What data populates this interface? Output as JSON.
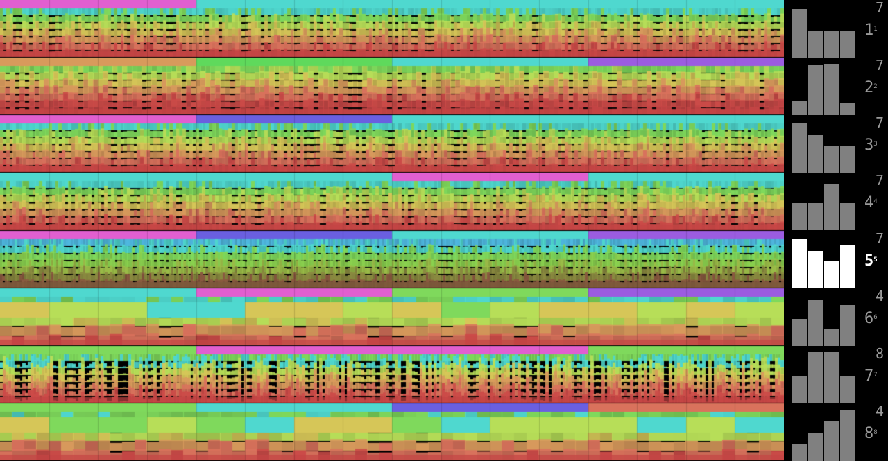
{
  "tracks": [
    {
      "index": "1",
      "sup": "1",
      "count": "7",
      "bars": [
        0.97,
        0.54,
        0.54,
        0.54
      ],
      "palette": [
        "#4fd8cf",
        "#7fd95c",
        "#b7de58",
        "#d6c658",
        "#d89a5c",
        "#d9725c",
        "#cc4b48"
      ],
      "head": [
        "#e15fd0",
        "#4fd8cf",
        "#4fd8cf",
        "#4fd8cf"
      ],
      "style": "fine"
    },
    {
      "index": "2",
      "sup": "2",
      "count": "7",
      "bars": [
        0.28,
        1.0,
        1.03,
        0.24
      ],
      "palette": [
        "#7fd95c",
        "#b7de58",
        "#d6c658",
        "#d89a5c",
        "#d9725c",
        "#cc4b48",
        "#c44545"
      ],
      "head": [
        "#d89a5c",
        "#5fd95c",
        "#4fd8cf",
        "#9b5ce0"
      ],
      "style": "coarse"
    },
    {
      "index": "3",
      "sup": "3",
      "count": "7",
      "bars": [
        0.98,
        0.75,
        0.54,
        0.54
      ],
      "palette": [
        "#4fd8cf",
        "#7fd95c",
        "#b7de58",
        "#d6c658",
        "#d89a5c",
        "#d9725c",
        "#cc4b48"
      ],
      "head": [
        "#e15fd0",
        "#6a5fe0",
        "#4fd8cf",
        "#4fd8cf"
      ],
      "style": "fine"
    },
    {
      "index": "4",
      "sup": "4",
      "count": "7",
      "bars": [
        0.54,
        0.54,
        0.92,
        0.54
      ],
      "palette": [
        "#4fd8cf",
        "#7fd95c",
        "#b7de58",
        "#d6c658",
        "#d89a5c",
        "#d9725c",
        "#cc4b48"
      ],
      "head": [
        "#4fd8cf",
        "#4fd8cf",
        "#e15fd0",
        "#4fd8cf"
      ],
      "style": "fine"
    },
    {
      "index": "5",
      "sup": "5",
      "count": "7",
      "bars": [
        0.98,
        0.75,
        0.54,
        0.88
      ],
      "palette": [
        "#4fb8e0",
        "#4fd8cf",
        "#7fd95c",
        "#8bd24f",
        "#9bbc48",
        "#8a8a40",
        "#8a5a40"
      ],
      "head": [
        "#e15fd0",
        "#6a5fe0",
        "#4fd8cf",
        "#9b5ce0"
      ],
      "style": "dense"
    },
    {
      "index": "6",
      "sup": "6",
      "count": "4",
      "bars": [
        0.54,
        0.92,
        0.33,
        0.82
      ],
      "palette": [
        "#4fd8cf",
        "#7fd95c",
        "#b7de58",
        "#d6c658",
        "#d89a5c",
        "#d9725c",
        "#cc4b48"
      ],
      "head": [
        "#4fd8cf",
        "#e15fd0",
        "#7fd95c",
        "#9b5ce0"
      ],
      "style": "blocky"
    },
    {
      "index": "7",
      "sup": "7",
      "count": "8",
      "bars": [
        0.54,
        1.03,
        1.03,
        0.54
      ],
      "palette": [
        "#7fd95c",
        "#4fd8cf",
        "#b7de58",
        "#d6c658",
        "#d89a5c",
        "#d9725c",
        "#cc4b48"
      ],
      "head": [
        "#7fd95c",
        "#e15fd0",
        "#e15fd0",
        "#7fd95c"
      ],
      "style": "spiky"
    },
    {
      "index": "8",
      "sup": "8",
      "count": "4",
      "bars": [
        0.33,
        0.56,
        0.8,
        1.06
      ],
      "palette": [
        "#7fd95c",
        "#4fd8cf",
        "#b7de58",
        "#d6c658",
        "#d89a5c",
        "#d9725c",
        "#cc4b48"
      ],
      "head": [
        "#7fd95c",
        "#4fd8cf",
        "#6a5fe0",
        "#d9725c"
      ],
      "style": "blocky"
    }
  ],
  "selected_index": "5",
  "colors": {
    "background": "#000000",
    "bar_default": "#808080",
    "bar_selected": "#ffffff",
    "label_default": "#9a9a9a",
    "label_selected": "#ffffff"
  }
}
